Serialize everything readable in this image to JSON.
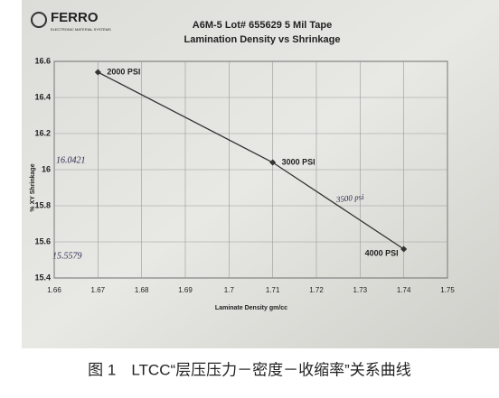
{
  "chart_data": {
    "type": "line",
    "logo": "FERRO",
    "logo_subtitle": "ELECTRONIC MATERIAL SYSTEMS",
    "title": "A6M-5 Lot# 655629 5 Mil Tape",
    "subtitle": "Lamination Density vs Shrinkage",
    "x_label": "Laminate Density  gm/cc",
    "y_label": "% XY Shrinkage",
    "x": [
      1.67,
      1.71,
      1.74
    ],
    "values": [
      16.54,
      16.04,
      15.56
    ],
    "point_labels": [
      "2000 PSI",
      "3000 PSI",
      "4000 PSI"
    ],
    "color": "#333333",
    "xlim": [
      1.66,
      1.75
    ],
    "xticks": [
      1.66,
      1.67,
      1.68,
      1.69,
      1.7,
      1.71,
      1.72,
      1.73,
      1.74,
      1.75
    ],
    "ylim": [
      15.4,
      16.6
    ],
    "yticks": [
      15.4,
      15.6,
      15.8,
      16,
      16.2,
      16.4,
      16.6
    ],
    "grid": true,
    "annotations": [
      "16.0421",
      "15.5579",
      "3500 psi"
    ],
    "caption": "图 1　LTCC“层压压力－密度－收缩率”关系曲线"
  }
}
